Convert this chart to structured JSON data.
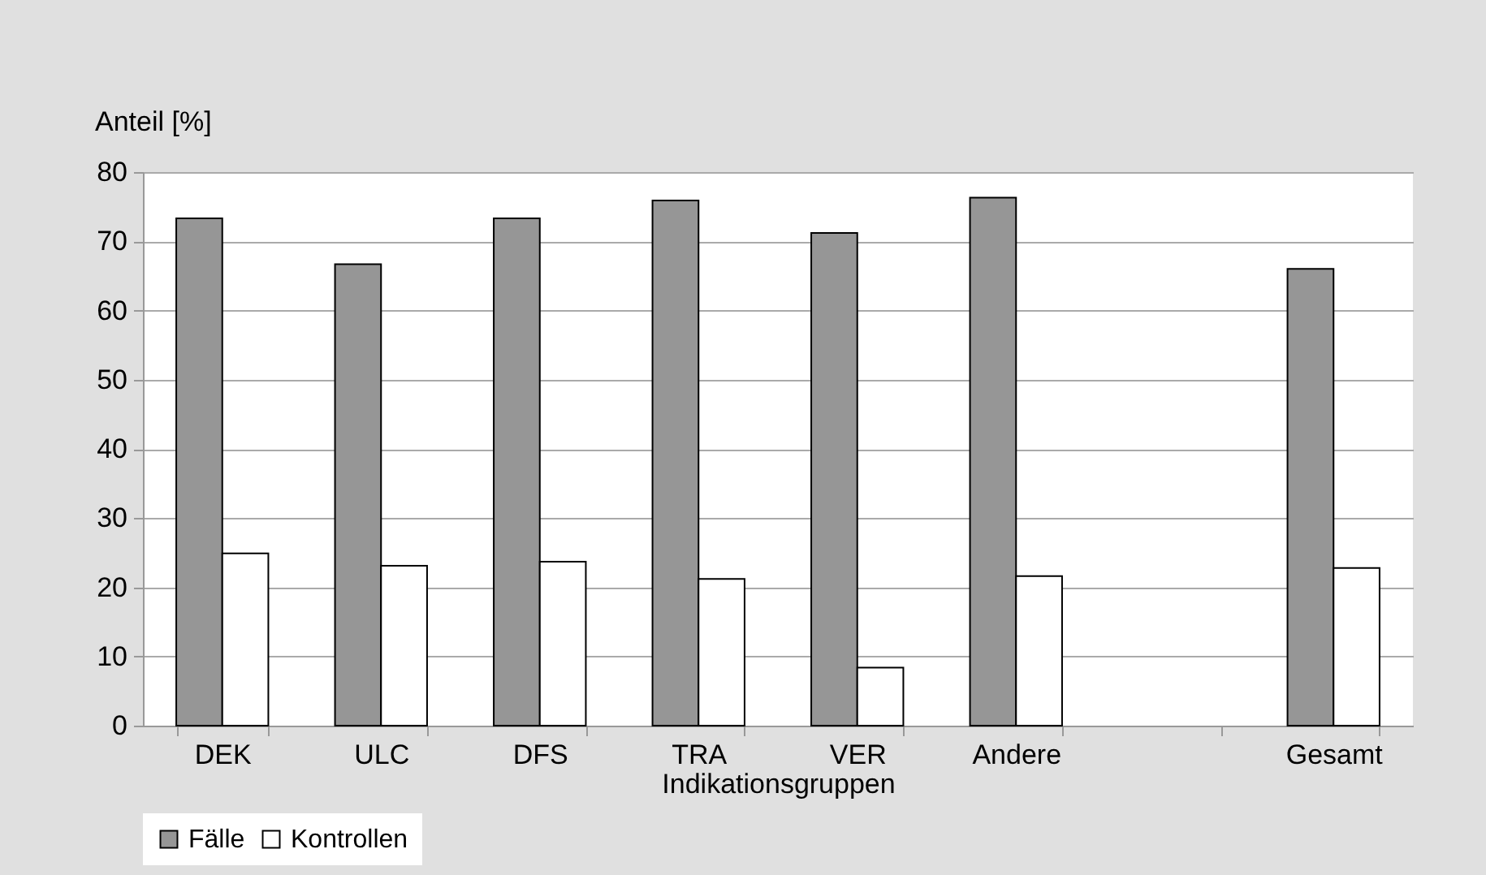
{
  "chart_data": {
    "type": "bar",
    "xlabel": "Indikationsgruppen",
    "ylabel": "Anteil [%]",
    "categories": [
      "DEK",
      "ULC",
      "DFS",
      "TRA",
      "VER",
      "Andere",
      null,
      "Gesamt"
    ],
    "series": [
      {
        "name": "Fälle",
        "color": "#969696",
        "values": [
          73.3,
          66.7,
          73.3,
          75.9,
          71.2,
          76.3,
          null,
          66.0
        ]
      },
      {
        "name": "Kontrollen",
        "color": "#ffffff",
        "values": [
          24.9,
          23.1,
          23.7,
          21.2,
          8.4,
          21.6,
          null,
          22.8
        ]
      }
    ],
    "ylim": [
      0,
      80
    ],
    "yticks": [
      0,
      10,
      20,
      30,
      40,
      50,
      60,
      70,
      80
    ],
    "grid": "y",
    "legend": "bottom"
  }
}
